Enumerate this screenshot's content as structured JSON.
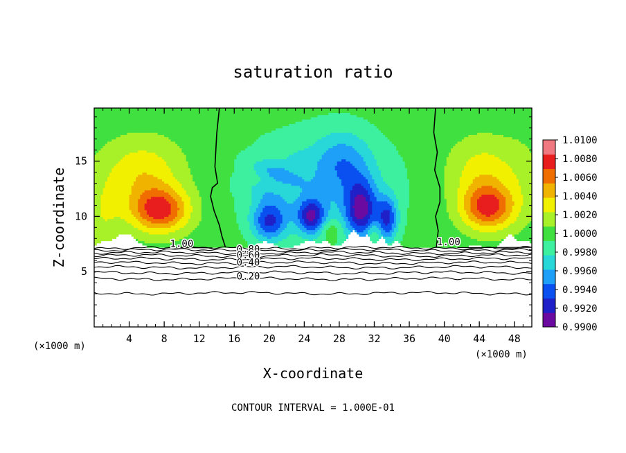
{
  "chart_data": {
    "type": "heatmap",
    "title": "saturation ratio",
    "xlabel": "X-coordinate",
    "ylabel": "Z-coordinate",
    "x_unit": "(×1000 m)",
    "y_unit": "(×1000 m)",
    "xlim": [
      0,
      50
    ],
    "ylim": [
      0,
      19.8
    ],
    "x_ticks": [
      4,
      8,
      12,
      16,
      20,
      24,
      28,
      32,
      36,
      40,
      44,
      48
    ],
    "y_ticks": [
      5,
      10,
      15
    ],
    "footer": "CONTOUR INTERVAL = 1.000E-01",
    "colorbar": {
      "min": 0.99,
      "max": 1.01,
      "labels": [
        "1.0100",
        "1.0080",
        "1.0060",
        "1.0040",
        "1.0020",
        "1.0000",
        "0.9980",
        "0.9960",
        "0.9940",
        "0.9920",
        "0.9900"
      ],
      "colors": [
        "#6a0aa0",
        "#2020c8",
        "#0a50f0",
        "#1ea0f8",
        "#28d8d8",
        "#3cf0a0",
        "#40e040",
        "#a8f028",
        "#f0f000",
        "#f0b400",
        "#f06e00",
        "#e81e1e",
        "#f07880"
      ]
    },
    "contours": [
      {
        "level": 1.0,
        "label": "1.00"
      },
      {
        "level": 0.8,
        "label": "0.80"
      },
      {
        "level": 0.6,
        "label": "0.60"
      },
      {
        "level": 0.4,
        "label": "0.40"
      },
      {
        "level": 0.2,
        "label": "0.20"
      }
    ]
  }
}
